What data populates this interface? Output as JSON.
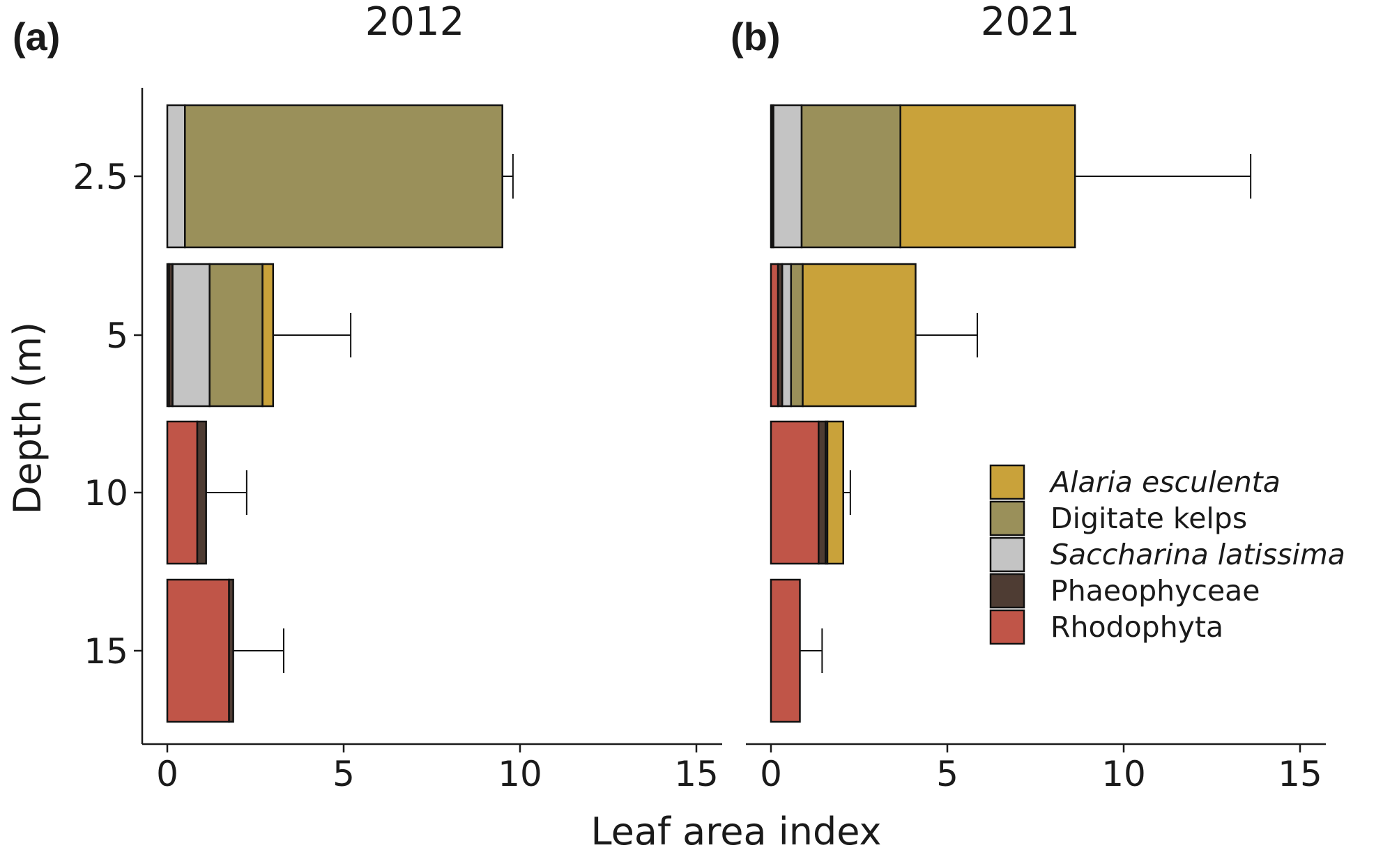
{
  "chart_data": {
    "type": "bar",
    "orientation": "horizontal",
    "stacked": true,
    "xlabel": "Leaf area index",
    "ylabel": "Depth (m)",
    "xlim": [
      0,
      15
    ],
    "xticks": [
      0,
      5,
      10,
      15
    ],
    "categories": [
      "2.5",
      "5",
      "10",
      "15"
    ],
    "grid": false,
    "legend_position": "right",
    "legend": [
      {
        "name": "Alaria esculenta",
        "color": "#C9A23A",
        "italic": true
      },
      {
        "name": "Digitate kelps",
        "color": "#9A905A",
        "italic": false
      },
      {
        "name": "Saccharina latissima",
        "color": "#C4C4C4",
        "italic": true
      },
      {
        "name": "Phaeophyceae",
        "color": "#4E3C33",
        "italic": false
      },
      {
        "name": "Rhodophyta",
        "color": "#C05548",
        "italic": false
      }
    ],
    "stack_order": [
      "Rhodophyta",
      "Phaeophyceae",
      "Saccharina latissima",
      "Digitate kelps",
      "Alaria esculenta"
    ],
    "panels": [
      {
        "letter": "(a)",
        "title": "2012",
        "series": [
          {
            "name": "Rhodophyta",
            "values": [
              0,
              0.05,
              0.85,
              1.75
            ]
          },
          {
            "name": "Phaeophyceae",
            "values": [
              0,
              0.1,
              0.25,
              0.12
            ]
          },
          {
            "name": "Saccharina latissima",
            "values": [
              0.5,
              1.05,
              0,
              0
            ]
          },
          {
            "name": "Digitate kelps",
            "values": [
              9.0,
              1.5,
              0,
              0
            ]
          },
          {
            "name": "Alaria esculenta",
            "values": [
              0,
              0.3,
              0,
              0
            ]
          }
        ],
        "error_upper": [
          9.8,
          5.2,
          2.25,
          3.3
        ]
      },
      {
        "letter": "(b)",
        "title": "2021",
        "series": [
          {
            "name": "Rhodophyta",
            "values": [
              0.02,
              0.2,
              1.35,
              0.82
            ]
          },
          {
            "name": "Phaeophyceae",
            "values": [
              0.05,
              0.12,
              0.2,
              0
            ]
          },
          {
            "name": "Saccharina latissima",
            "values": [
              0.8,
              0.25,
              0.05,
              0
            ]
          },
          {
            "name": "Digitate kelps",
            "values": [
              2.8,
              0.33,
              0,
              0
            ]
          },
          {
            "name": "Alaria esculenta",
            "values": [
              4.95,
              3.2,
              0.45,
              0
            ]
          }
        ],
        "error_upper": [
          13.6,
          5.85,
          2.25,
          1.45
        ]
      }
    ]
  }
}
